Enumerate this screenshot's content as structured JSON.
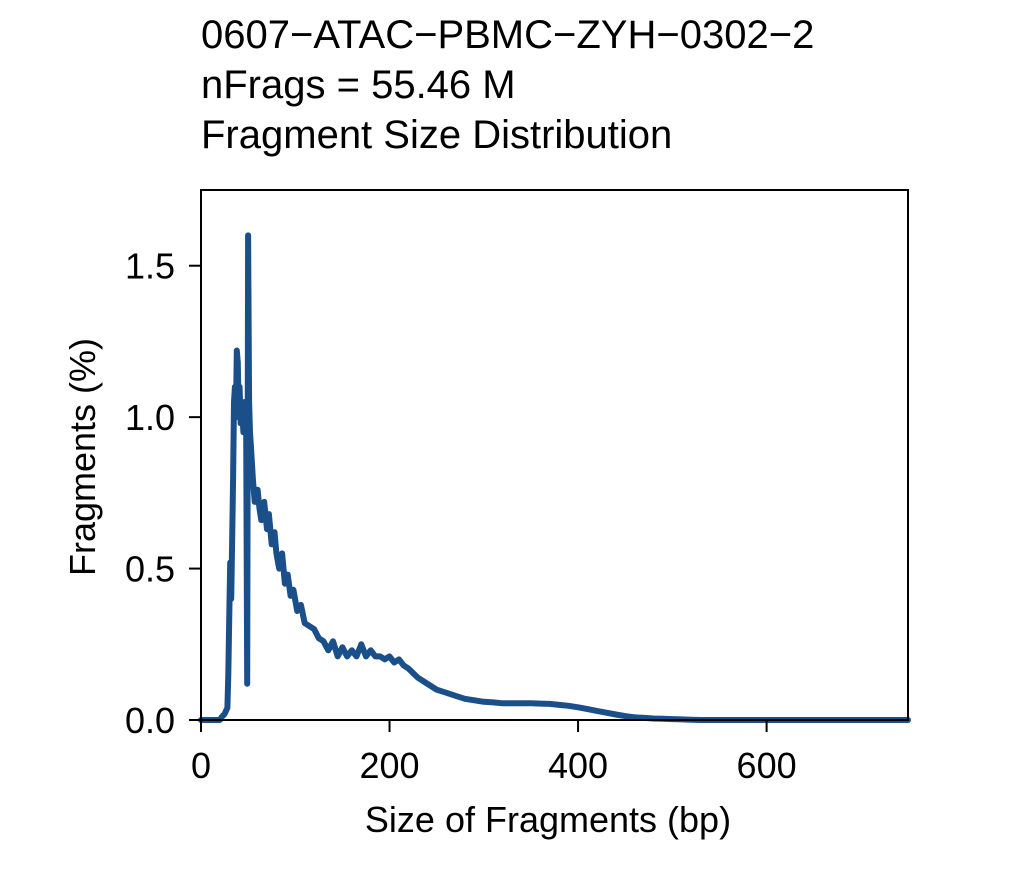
{
  "chart_data": {
    "type": "line",
    "title_lines": [
      "0607−ATAC−PBMC−ZYH−0302−2",
      "nFrags = 55.46 M",
      "Fragment Size Distribution"
    ],
    "xlabel": "Size of Fragments (bp)",
    "ylabel": "Fragments (%)",
    "xlim": [
      0,
      750
    ],
    "ylim": [
      0,
      1.75
    ],
    "xticks": [
      0,
      200,
      400,
      600
    ],
    "xtick_labels": [
      "0",
      "200",
      "400",
      "600"
    ],
    "yticks": [
      0.0,
      0.5,
      1.0,
      1.5
    ],
    "ytick_labels": [
      "0.0",
      "0.5",
      "1.0",
      "1.5"
    ],
    "grid": false,
    "legend": "none",
    "line_color": "#1b4f8a",
    "series": [
      {
        "x": [
          0,
          15,
          20,
          22,
          25,
          28,
          29,
          30,
          31,
          32,
          33,
          34,
          35,
          36,
          37,
          38,
          39,
          40,
          41,
          42,
          43,
          44,
          45,
          46,
          47,
          48,
          49,
          50,
          51,
          52,
          53,
          54,
          55,
          57,
          60,
          62,
          64,
          67,
          70,
          72,
          75,
          78,
          80,
          83,
          86,
          89,
          92,
          95,
          98,
          102,
          106,
          110,
          115,
          120,
          125,
          130,
          135,
          140,
          145,
          150,
          155,
          160,
          165,
          170,
          175,
          180,
          185,
          190,
          195,
          200,
          205,
          210,
          215,
          220,
          230,
          240,
          250,
          260,
          270,
          280,
          290,
          300,
          310,
          320,
          330,
          340,
          350,
          360,
          370,
          380,
          390,
          400,
          410,
          420,
          430,
          440,
          450,
          460,
          470,
          480,
          490,
          500,
          510,
          520,
          530,
          540,
          560,
          600,
          650,
          700,
          750
        ],
        "y": [
          0.0,
          0.0,
          0.0,
          0.01,
          0.02,
          0.04,
          0.15,
          0.35,
          0.52,
          0.4,
          0.58,
          0.8,
          1.05,
          1.1,
          1.0,
          1.22,
          1.18,
          1.0,
          1.1,
          0.98,
          1.05,
          1.0,
          0.95,
          1.05,
          0.98,
          0.95,
          0.12,
          1.6,
          1.05,
          0.95,
          0.9,
          0.85,
          0.8,
          0.72,
          0.76,
          0.7,
          0.66,
          0.72,
          0.63,
          0.68,
          0.58,
          0.62,
          0.55,
          0.5,
          0.55,
          0.45,
          0.48,
          0.41,
          0.43,
          0.36,
          0.38,
          0.32,
          0.31,
          0.3,
          0.27,
          0.26,
          0.23,
          0.26,
          0.21,
          0.24,
          0.21,
          0.23,
          0.21,
          0.25,
          0.21,
          0.23,
          0.21,
          0.21,
          0.2,
          0.21,
          0.19,
          0.2,
          0.18,
          0.17,
          0.14,
          0.12,
          0.1,
          0.09,
          0.08,
          0.07,
          0.065,
          0.06,
          0.058,
          0.055,
          0.055,
          0.055,
          0.055,
          0.054,
          0.053,
          0.05,
          0.047,
          0.042,
          0.036,
          0.03,
          0.024,
          0.018,
          0.013,
          0.009,
          0.007,
          0.005,
          0.004,
          0.003,
          0.002,
          0.001,
          0.0,
          0.0,
          0.0,
          0.0,
          0.0,
          0.0,
          0.0
        ]
      }
    ]
  }
}
